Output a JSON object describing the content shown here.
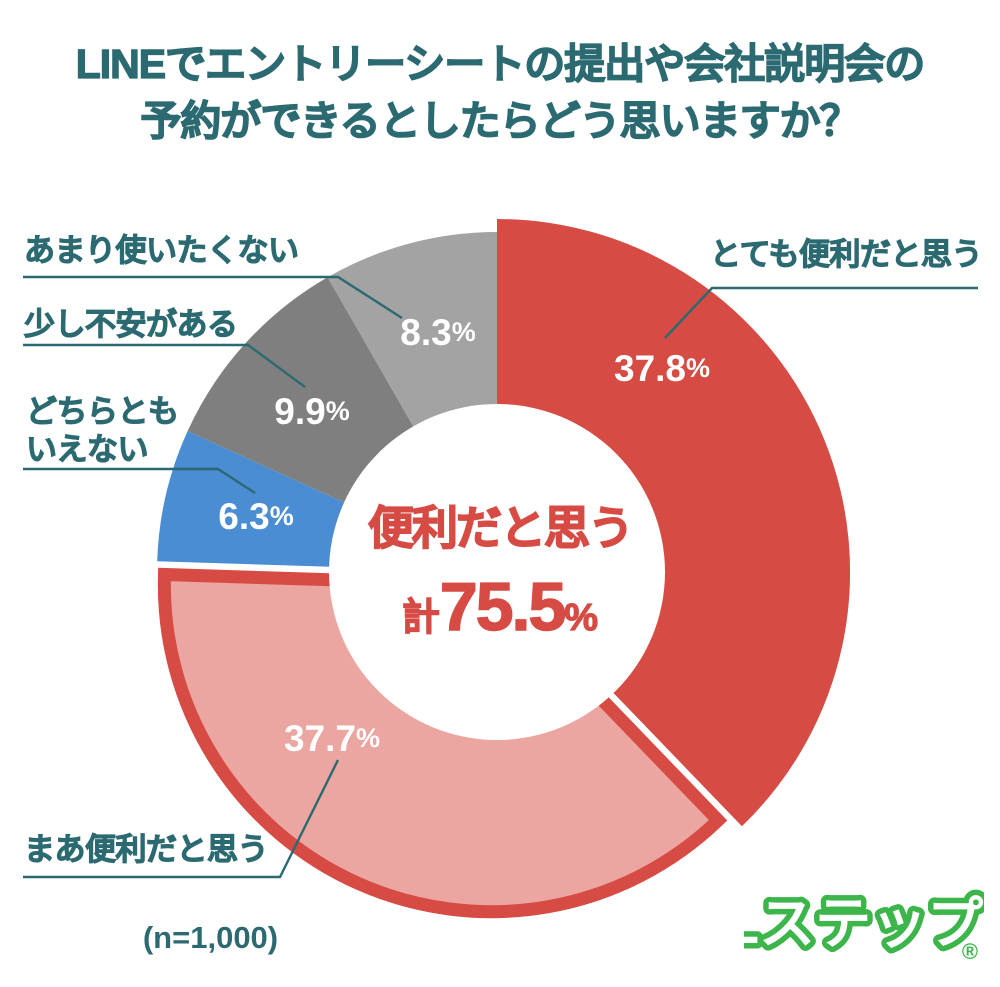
{
  "title": {
    "line1": "LINEでエントリーシートの提出や会社説明会の",
    "line2": "予約ができるとしたらどう思いますか？"
  },
  "center_annotation": {
    "label": "便利だと思う",
    "prefix": "計",
    "value": "75.5",
    "unit": "%"
  },
  "sample_size_note": "(n=1,000)",
  "logo": {
    "text": "Lステップ",
    "mark": "®"
  },
  "colors": {
    "title_teal": "#2c6a72",
    "accent_red": "#d64b43",
    "pink": "#eca6a2",
    "blue": "#4a8dd2",
    "gray_dark": "#7f7f7f",
    "gray_light": "#a3a3a3",
    "leader_line": "#2c6a72",
    "logo_green": "#3cb54a",
    "background": "#ffffff"
  },
  "chart_data": {
    "type": "pie",
    "subtype": "donut",
    "title": "LINEでエントリーシートの提出や会社説明会の予約ができるとしたらどう思いますか？",
    "unit": "%",
    "sample_size": 1000,
    "start_angle": "top",
    "direction": "clockwise",
    "legend_position": "callout-labels",
    "slices": [
      {
        "label": "とても便利だと思う",
        "value": 37.8,
        "color": "#d64b43",
        "emphasized": true
      },
      {
        "label": "まあ便利だと思う",
        "value": 37.7,
        "color": "#eca6a2",
        "border_color": "#d64b43",
        "exploded": true
      },
      {
        "label": "どちらともいえない",
        "value": 6.3,
        "color": "#4a8dd2"
      },
      {
        "label": "少し不安がある",
        "value": 9.9,
        "color": "#7f7f7f"
      },
      {
        "label": "あまり使いたくない",
        "value": 8.3,
        "color": "#a3a3a3"
      }
    ],
    "annotation": {
      "text": "便利だと思う 計75.5%",
      "value": 75.5
    }
  }
}
